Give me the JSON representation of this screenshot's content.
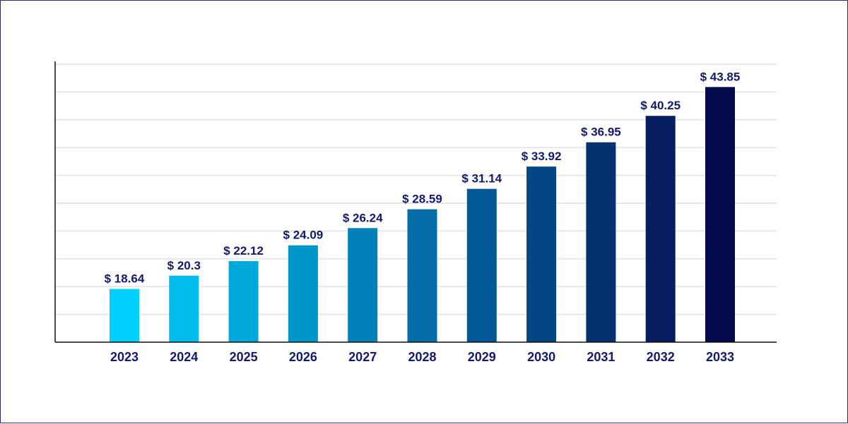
{
  "chart_data": {
    "type": "bar",
    "categories": [
      "2023",
      "2024",
      "2025",
      "2026",
      "2027",
      "2028",
      "2029",
      "2030",
      "2031",
      "2032",
      "2033"
    ],
    "values": [
      18.64,
      20.3,
      22.12,
      24.09,
      26.24,
      28.59,
      31.14,
      33.92,
      36.95,
      40.25,
      43.85
    ],
    "value_labels": [
      "$ 18.64",
      "$ 20.3",
      "$ 22.12",
      "$ 24.09",
      "$ 26.24",
      "$ 28.59",
      "$ 31.14",
      "$ 33.92",
      "$ 36.95",
      "$ 40.25",
      "$ 43.85"
    ],
    "title": "",
    "xlabel": "",
    "ylabel": "",
    "ylim": [
      12,
      46.7
    ],
    "grid": true,
    "legend": "none",
    "colors": {
      "bar_start": "#00d0ff",
      "bar_end": "#050a4e",
      "text": "#13196b",
      "axis": "#111111",
      "grid": "#e6e7ec",
      "border": "#2a2e6e"
    }
  }
}
